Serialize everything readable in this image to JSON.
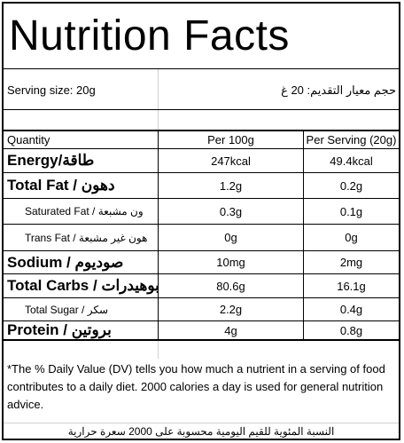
{
  "title": "Nutrition Facts",
  "serving": {
    "en": "Serving size: 20g",
    "ar": "حجم معيار التقديم: 20 غ"
  },
  "header": {
    "quantity": "Quantity",
    "per100": "Per 100g",
    "perServing": "Per Serving (20g)"
  },
  "rows": [
    {
      "label": "Energy/طاقة",
      "per100": "247kcal",
      "perServing": "49.4kcal"
    },
    {
      "label": "Total Fat / دهون",
      "per100": "1.2g",
      "perServing": "0.2g"
    },
    {
      "label": "Saturated Fat / ون مشبعة",
      "per100": "0.3g",
      "perServing": "0.1g"
    },
    {
      "label": "Trans Fat / هون غير مشبعة",
      "per100": "0g",
      "perServing": "0g"
    },
    {
      "label": "Sodium / صوديوم",
      "per100": "10mg",
      "perServing": "2mg"
    },
    {
      "label": "Total Carbs / بوهيدرات",
      "per100": "80.6g",
      "perServing": "16.1g"
    },
    {
      "label": "Total Sugar / سكر",
      "per100": "2.2g",
      "perServing": "0.4g"
    },
    {
      "label": "Protein / بروتين",
      "per100": "4g",
      "perServing": "0.8g"
    }
  ],
  "footnote": {
    "en": "*The % Daily Value (DV) tells you how much a nutrient in a serving of food contributes to a daily diet. 2000 calories a day is used for general nutrition advice.",
    "ar": "النسبة المئوية للقيم اليومية محسوبة على 2000 سعرة حرارية"
  }
}
